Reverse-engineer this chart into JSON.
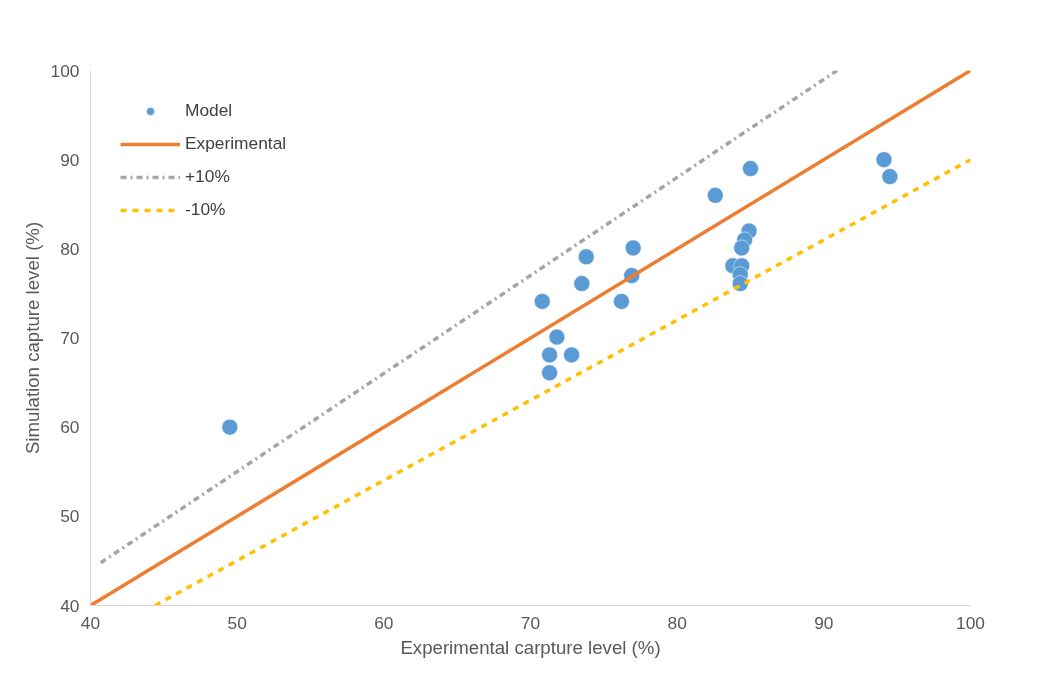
{
  "chart_data": {
    "type": "scatter",
    "xlabel": "Experimental carpture level (%)",
    "ylabel": "Simulation capture level (%)",
    "xlim": [
      40,
      100
    ],
    "ylim": [
      40,
      100
    ],
    "xticks": [
      40,
      50,
      60,
      70,
      80,
      90,
      100
    ],
    "yticks": [
      40,
      50,
      60,
      70,
      80,
      90,
      100
    ],
    "grid": false,
    "legend": "top left",
    "series": [
      {
        "name": "Model",
        "marker": "circle",
        "color": "#5b9bd5",
        "x": [
          49.5,
          70.8,
          71.3,
          71.3,
          71.8,
          72.8,
          73.5,
          73.8,
          76.2,
          76.9,
          77.0,
          82.6,
          85.0,
          84.9,
          84.6,
          84.4,
          83.8,
          84.4,
          84.3,
          84.3,
          94.1,
          94.5
        ],
        "values": [
          60.0,
          74.1,
          68.1,
          66.1,
          70.1,
          68.1,
          76.1,
          79.1,
          74.1,
          77.0,
          80.1,
          86.0,
          89.0,
          82.0,
          81.0,
          80.1,
          78.1,
          78.1,
          77.1,
          76.1,
          90.0,
          88.1
        ]
      },
      {
        "name": "Experimental",
        "type": "line",
        "color": "#ed7d31",
        "line_style": "solid",
        "x": [
          40,
          100
        ],
        "values": [
          40,
          100
        ]
      },
      {
        "name": "+10%",
        "type": "line",
        "color": "#a5a5a5",
        "line_style": "dashdot",
        "x": [
          40.7,
          90.9
        ],
        "values": [
          44.8,
          100
        ]
      },
      {
        "name": "-10%",
        "type": "line",
        "color": "#ffc000",
        "line_style": "dashed",
        "x": [
          44.4,
          100
        ],
        "values": [
          40,
          90
        ]
      }
    ]
  }
}
